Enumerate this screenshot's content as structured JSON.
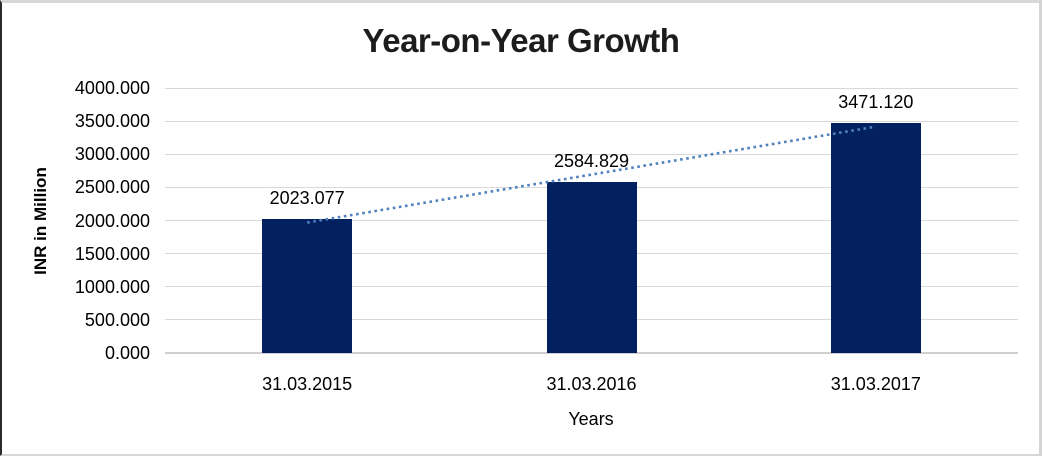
{
  "chart_data": {
    "type": "bar",
    "title": "Year-on-Year Growth",
    "xlabel": "Years",
    "ylabel": "INR in Million",
    "categories": [
      "31.03.2015",
      "31.03.2016",
      "31.03.2017"
    ],
    "values": [
      2023.077,
      2584.829,
      3471.12
    ],
    "value_labels": [
      "2023.077",
      "2584.829",
      "3471.120"
    ],
    "yticks": [
      0,
      500,
      1000,
      1500,
      2000,
      2500,
      3000,
      3500,
      4000
    ],
    "ytick_labels": [
      "0.000",
      "500.000",
      "1000.000",
      "1500.000",
      "2000.000",
      "2500.000",
      "3000.000",
      "3500.000",
      "4000.000"
    ],
    "ylim": [
      0,
      4000
    ],
    "grid": "horizontal",
    "legend": "none",
    "colors": {
      "bar": "#02215e",
      "gridline": "#d9d9d9",
      "trendline": "#4f81bd",
      "title_text": "#1c1c1c",
      "label_text": "#000000"
    },
    "trendline": {
      "type": "linear",
      "style": "dotted"
    }
  }
}
